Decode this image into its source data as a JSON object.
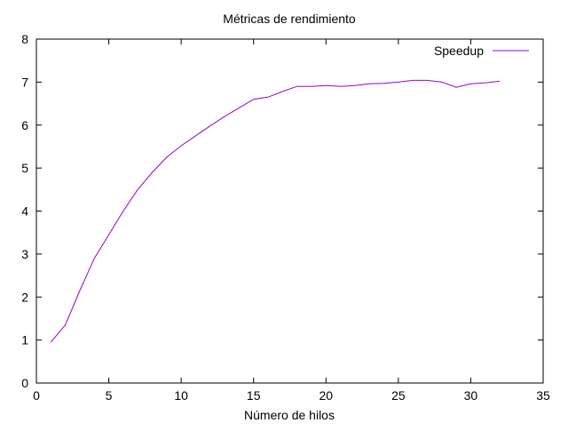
{
  "colors": {
    "series": "#9400d3",
    "axis": "#000000",
    "background": "#ffffff"
  },
  "chart_data": {
    "type": "line",
    "title": "Métricas de rendimiento",
    "xlabel": "Número de hilos",
    "ylabel": "",
    "xlim": [
      0,
      35
    ],
    "ylim": [
      0,
      8
    ],
    "xticks": [
      0,
      5,
      10,
      15,
      20,
      25,
      30,
      35
    ],
    "yticks": [
      0,
      1,
      2,
      3,
      4,
      5,
      6,
      7,
      8
    ],
    "grid": false,
    "legend_position": "top-right",
    "series": [
      {
        "name": "Speedup",
        "x": [
          1,
          2,
          3,
          4,
          5,
          6,
          7,
          8,
          9,
          10,
          11,
          12,
          13,
          14,
          15,
          16,
          17,
          18,
          19,
          20,
          21,
          22,
          23,
          24,
          25,
          26,
          27,
          28,
          29,
          30,
          31,
          32
        ],
        "y": [
          0.95,
          1.35,
          2.15,
          2.9,
          3.45,
          4.0,
          4.5,
          4.9,
          5.25,
          5.52,
          5.75,
          5.98,
          6.2,
          6.4,
          6.6,
          6.65,
          6.78,
          6.9,
          6.9,
          6.92,
          6.9,
          6.92,
          6.96,
          6.97,
          7.0,
          7.04,
          7.04,
          7.0,
          6.88,
          6.96,
          6.98,
          7.02
        ]
      }
    ]
  }
}
